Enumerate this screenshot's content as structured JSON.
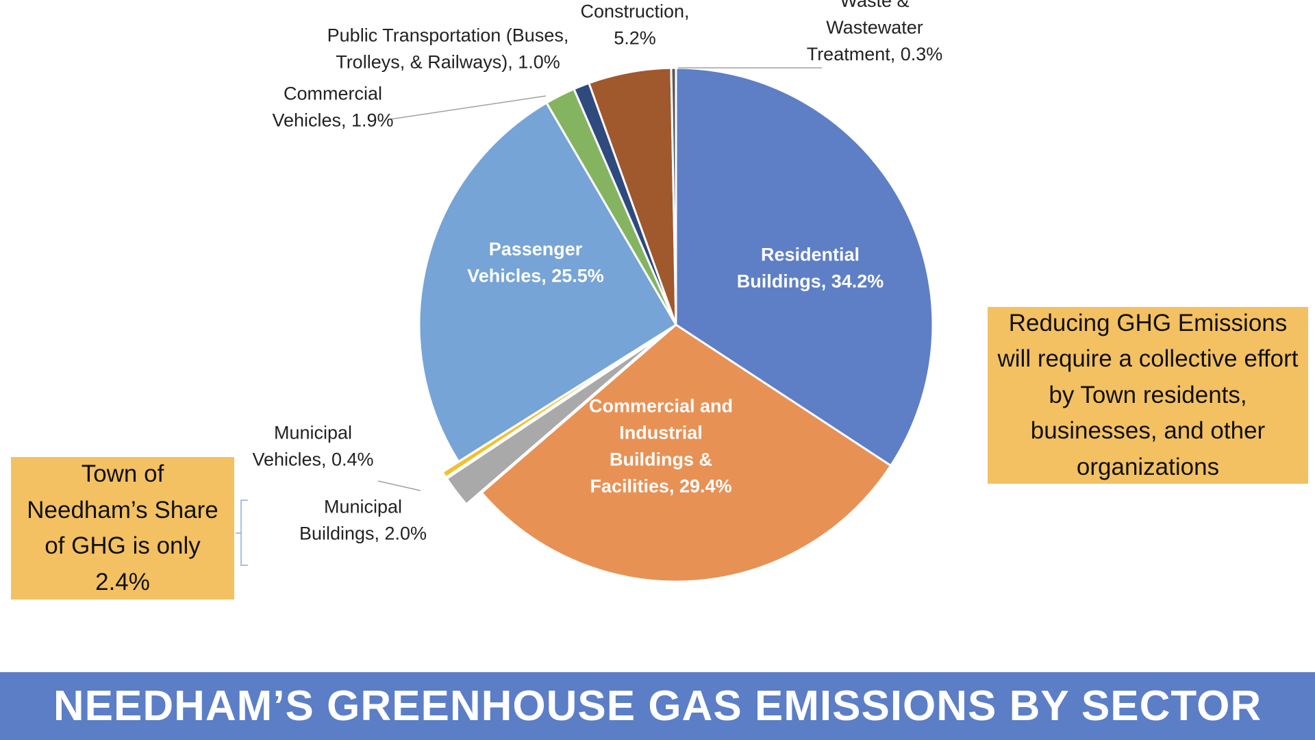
{
  "page": {
    "title": "NEEDHAM’S GREENHOUSE GAS EMISSIONS BY SECTOR"
  },
  "callouts": {
    "share": "Town of Needham’s Share of GHG is only 2.4%",
    "effort": "Reducing GHG Emissions will require a collective effort by Town residents, businesses, and other organizations"
  },
  "chart_data": {
    "type": "pie",
    "title": "",
    "unit": "%",
    "slices": [
      {
        "name": "Residential Buildings",
        "value": 34.2,
        "color": "#5e7fc6",
        "label": [
          "Residential",
          "Buildings, 34.2%"
        ]
      },
      {
        "name": "Commercial and Industrial Buildings & Facilities",
        "value": 29.4,
        "color": "#e89155",
        "label": [
          "Commercial and",
          "Industrial",
          "Buildings &",
          "Facilities, 29.4%"
        ]
      },
      {
        "name": "Municipal Buildings",
        "value": 2.0,
        "color": "#a9a9a9",
        "exploded": true,
        "label": [
          "Municipal",
          "Buildings, 2.0%"
        ]
      },
      {
        "name": "Municipal Vehicles",
        "value": 0.4,
        "color": "#f2c130",
        "exploded": true,
        "label": [
          "Municipal",
          "Vehicles, 0.4%"
        ]
      },
      {
        "name": "Passenger Vehicles",
        "value": 25.5,
        "color": "#76a4d6",
        "label": [
          "Passenger",
          "Vehicles, 25.5%"
        ]
      },
      {
        "name": "Commercial Vehicles",
        "value": 1.9,
        "color": "#85b461",
        "label": [
          "Commercial",
          "Vehicles, 1.9%"
        ]
      },
      {
        "name": "Public Transportation (Buses, Trolleys, & Railways)",
        "value": 1.0,
        "color": "#2e4a7e",
        "label": [
          "Public Transportation (Buses,",
          "Trolleys, & Railways), 1.0%"
        ]
      },
      {
        "name": "Construction",
        "value": 5.2,
        "color": "#a0582d",
        "label": [
          "Construction,",
          "5.2%"
        ]
      },
      {
        "name": "Waste & Wastewater Treatment",
        "value": 0.3,
        "color": "#595959",
        "label": [
          "Waste &",
          "Wastewater",
          "Treatment, 0.3%"
        ]
      }
    ],
    "legend": "none"
  }
}
